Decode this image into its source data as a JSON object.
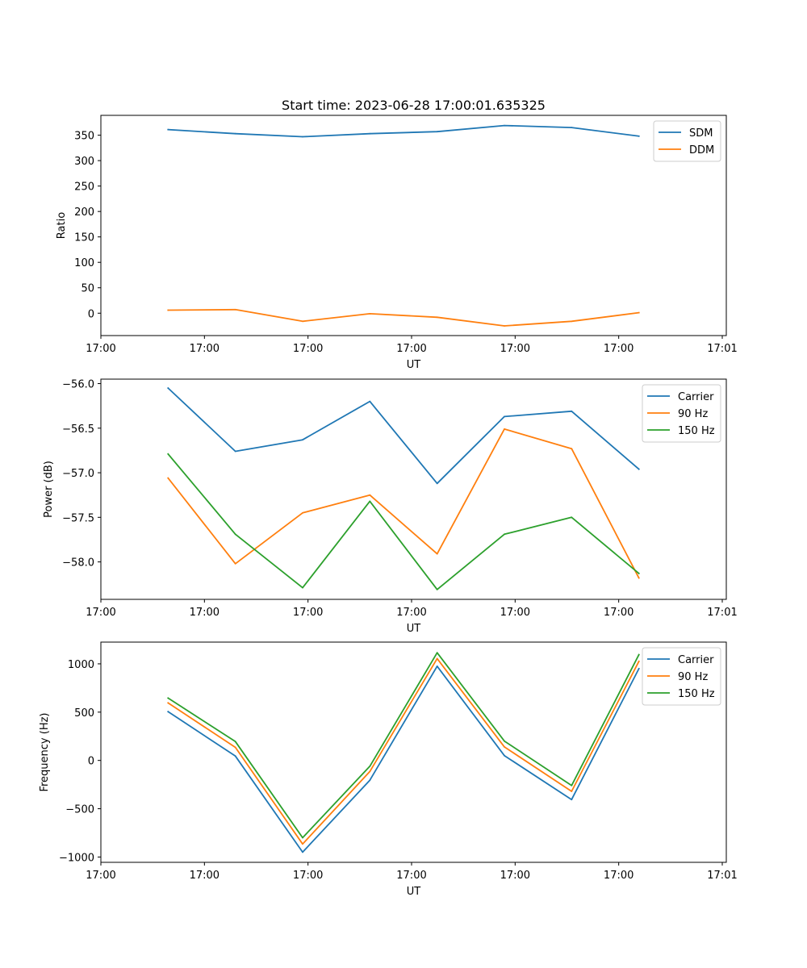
{
  "chart_data": [
    {
      "type": "line",
      "title": "Start time: 2023-06-28 17:00:01.635325",
      "xlabel": "UT",
      "ylabel": "Ratio",
      "x": [
        0.5,
        1.0,
        1.5,
        2.0,
        2.5,
        3.0,
        3.5,
        4.0
      ],
      "xlim": [
        0,
        4.65
      ],
      "ylim": [
        -44,
        389
      ],
      "xticks": [
        0,
        0.77,
        1.54,
        2.31,
        3.08,
        3.85,
        4.62
      ],
      "xtick_labels": [
        "17:00",
        "17:00",
        "17:00",
        "17:00",
        "17:00",
        "17:00",
        "17:01"
      ],
      "yticks": [
        0,
        50,
        100,
        150,
        200,
        250,
        300,
        350
      ],
      "ytick_labels": [
        "0",
        "50",
        "100",
        "150",
        "200",
        "250",
        "300",
        "350"
      ],
      "legend": "upper-right",
      "series": [
        {
          "name": "SDM",
          "color": "#1f77b4",
          "values": [
            361,
            353,
            347,
            353,
            357,
            369,
            365,
            348
          ]
        },
        {
          "name": "DDM",
          "color": "#ff7f0e",
          "values": [
            6,
            7,
            -16,
            -1,
            -8,
            -25,
            -16,
            1
          ]
        }
      ]
    },
    {
      "type": "line",
      "title": "",
      "xlabel": "UT",
      "ylabel": "Power (dB)",
      "x": [
        0.5,
        1.0,
        1.5,
        2.0,
        2.5,
        3.0,
        3.5,
        4.0
      ],
      "xlim": [
        0,
        4.65
      ],
      "ylim": [
        -58.42,
        -55.95
      ],
      "xticks": [
        0,
        0.77,
        1.54,
        2.31,
        3.08,
        3.85,
        4.62
      ],
      "xtick_labels": [
        "17:00",
        "17:00",
        "17:00",
        "17:00",
        "17:00",
        "17:00",
        "17:01"
      ],
      "yticks": [
        -58.0,
        -57.5,
        -57.0,
        -56.5,
        -56.0
      ],
      "ytick_labels": [
        "−58.0",
        "−57.5",
        "−57.0",
        "−56.5",
        "−56.0"
      ],
      "legend": "upper-right",
      "series": [
        {
          "name": "Carrier",
          "color": "#1f77b4",
          "values": [
            -56.05,
            -56.76,
            -56.63,
            -56.2,
            -57.12,
            -56.37,
            -56.31,
            -56.96
          ]
        },
        {
          "name": "90 Hz",
          "color": "#ff7f0e",
          "values": [
            -57.06,
            -58.02,
            -57.45,
            -57.25,
            -57.91,
            -56.51,
            -56.73,
            -58.18
          ]
        },
        {
          "name": "150 Hz",
          "color": "#2ca02c",
          "values": [
            -56.79,
            -57.69,
            -58.29,
            -57.32,
            -58.31,
            -57.69,
            -57.5,
            -58.13
          ]
        }
      ]
    },
    {
      "type": "line",
      "title": "",
      "xlabel": "UT",
      "ylabel": "Frequency (Hz)",
      "x": [
        0.5,
        1.0,
        1.5,
        2.0,
        2.5,
        3.0,
        3.5,
        4.0
      ],
      "xlim": [
        0,
        4.65
      ],
      "ylim": [
        -1055,
        1225
      ],
      "xticks": [
        0,
        0.77,
        1.54,
        2.31,
        3.08,
        3.85,
        4.62
      ],
      "xtick_labels": [
        "17:00",
        "17:00",
        "17:00",
        "17:00",
        "17:00",
        "17:00",
        "17:01"
      ],
      "yticks": [
        -1000,
        -500,
        0,
        500,
        1000
      ],
      "ytick_labels": [
        "−1000",
        "−500",
        "0",
        "500",
        "1000"
      ],
      "legend": "upper-right",
      "series": [
        {
          "name": "Carrier",
          "color": "#1f77b4",
          "values": [
            505,
            45,
            -950,
            -205,
            975,
            50,
            -405,
            950
          ]
        },
        {
          "name": "90 Hz",
          "color": "#ff7f0e",
          "values": [
            595,
            135,
            -865,
            -115,
            1055,
            140,
            -320,
            1025
          ]
        },
        {
          "name": "150 Hz",
          "color": "#2ca02c",
          "values": [
            645,
            195,
            -800,
            -60,
            1115,
            200,
            -260,
            1095
          ]
        }
      ]
    }
  ]
}
